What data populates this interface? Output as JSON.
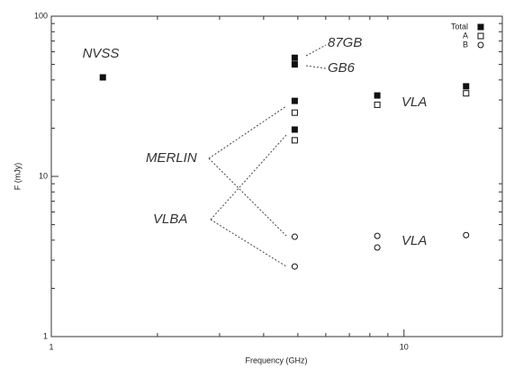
{
  "chart_data": {
    "type": "scatter",
    "x_label": "Frequency (GHz)",
    "y_label": "F (mJy)",
    "xlog": true,
    "ylog": true,
    "xlim": [
      1,
      19
    ],
    "ylim": [
      1,
      100
    ],
    "xticks": [
      1,
      10
    ],
    "yticks": [
      1,
      10,
      100
    ],
    "legend": "upper right",
    "annotations": [
      "NVSS",
      "87GB",
      "GB6",
      "MERLIN",
      "VLBA",
      "VLA",
      "VLA"
    ],
    "series": [
      {
        "name": "Total",
        "color": "#111111",
        "marker": "filled-square",
        "x": [
          1.4,
          4.9,
          4.9,
          4.9,
          4.9,
          8.4,
          15
        ],
        "values": [
          41.5,
          55,
          50,
          29.6,
          19.6,
          32,
          36.5
        ]
      },
      {
        "name": "A",
        "color": "#111111",
        "marker": "open-square",
        "x": [
          4.9,
          4.9,
          8.4,
          15
        ],
        "values": [
          25,
          16.8,
          28,
          33
        ]
      },
      {
        "name": "B",
        "color": "#111111",
        "marker": "open-circle",
        "x": [
          4.9,
          4.9,
          8.4,
          8.4,
          15
        ],
        "values": [
          4.2,
          2.74,
          4.25,
          3.6,
          4.3
        ]
      }
    ]
  }
}
